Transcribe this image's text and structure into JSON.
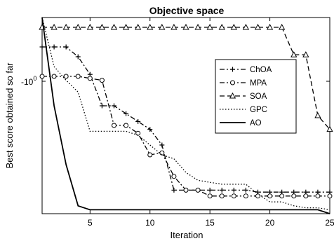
{
  "chart_data": {
    "type": "line",
    "title": "Objective space",
    "xlabel": "Iteration",
    "ylabel": "Best score obtained so far",
    "xlim": [
      1,
      25
    ],
    "ylim": [
      0,
      100
    ],
    "y_scale": "log",
    "x_ticks": [
      5,
      10,
      15,
      20,
      25
    ],
    "y_tick_label": "-10",
    "y_tick_exponent": "0",
    "legend_position": "right",
    "grid": false,
    "series": [
      {
        "name": "ChOA",
        "color": "#000000",
        "dash": "dashdot",
        "marker": "plus",
        "x": [
          1,
          2,
          3,
          4,
          5,
          6,
          7,
          8,
          9,
          10,
          11,
          12,
          13,
          14,
          15,
          16,
          17,
          18,
          19,
          20,
          21,
          22,
          23,
          24,
          25
        ],
        "y": [
          85,
          85,
          85,
          80,
          71,
          55,
          55,
          51,
          47,
          43,
          35,
          12,
          12,
          12,
          12,
          12,
          12,
          12,
          11,
          11,
          11,
          11,
          11,
          11,
          11
        ]
      },
      {
        "name": "MPA",
        "color": "#000000",
        "dash": "dashdot",
        "marker": "circle",
        "x": [
          1,
          2,
          3,
          4,
          5,
          6,
          7,
          8,
          9,
          10,
          11,
          12,
          13,
          14,
          15,
          16,
          17,
          18,
          19,
          20,
          21,
          22,
          23,
          24,
          25
        ],
        "y": [
          70,
          70,
          70,
          70,
          69,
          68,
          45,
          45,
          41,
          30,
          31,
          19,
          12,
          12,
          9,
          9,
          9,
          9,
          9,
          9,
          9,
          9,
          9,
          9,
          9
        ]
      },
      {
        "name": "SOA",
        "color": "#000000",
        "dash": "dashed",
        "marker": "triangle",
        "x": [
          1,
          2,
          3,
          4,
          5,
          6,
          7,
          8,
          9,
          10,
          11,
          12,
          13,
          14,
          15,
          16,
          17,
          18,
          19,
          20,
          21,
          22,
          23,
          24,
          25
        ],
        "y": [
          95,
          95,
          95,
          95,
          95,
          95,
          95,
          95,
          95,
          95,
          95,
          95,
          95,
          95,
          95,
          95,
          95,
          95,
          95,
          95,
          95,
          81,
          81,
          50,
          43
        ]
      },
      {
        "name": "GPC",
        "color": "#000000",
        "dash": "dotted",
        "marker": "none",
        "x": [
          1,
          2,
          3,
          4,
          5,
          6,
          7,
          8,
          9,
          10,
          11,
          12,
          13,
          14,
          15,
          16,
          17,
          18,
          19,
          20,
          21,
          22,
          23,
          24,
          25
        ],
        "y": [
          100,
          75,
          68,
          62,
          42,
          42,
          42,
          42,
          40,
          35,
          30,
          28,
          21,
          17,
          16,
          15,
          15,
          15,
          10,
          6,
          6,
          4,
          3,
          3,
          2
        ]
      },
      {
        "name": "AO",
        "color": "#000000",
        "dash": "solid",
        "marker": "none",
        "x": [
          1,
          2,
          3,
          4,
          5,
          6,
          7,
          8,
          9,
          10,
          11,
          12,
          13,
          14,
          15,
          16,
          17,
          18,
          19,
          20,
          21,
          22,
          23,
          24,
          25
        ],
        "y": [
          100,
          55,
          25,
          4,
          2,
          2,
          2,
          2,
          2,
          2,
          2,
          2,
          2,
          2,
          2,
          2,
          2,
          2,
          2,
          2,
          2,
          2,
          2,
          2,
          0
        ]
      }
    ]
  }
}
